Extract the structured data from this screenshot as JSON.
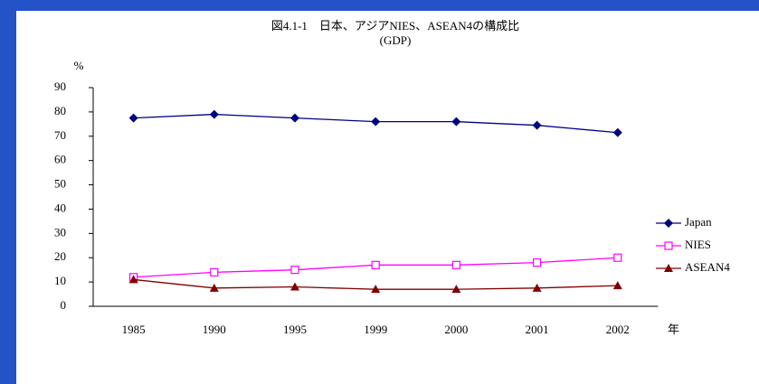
{
  "chart_data": {
    "type": "line",
    "title": "図4.1-1　日本、アジアNIES、ASEAN4の構成比",
    "subtitle": "(GDP)",
    "y_label": "%",
    "x_label": "年",
    "categories": [
      "1985",
      "1990",
      "1995",
      "1999",
      "2000",
      "2001",
      "2002"
    ],
    "series": [
      {
        "name": "Japan",
        "color": "#000080",
        "marker": "diamond",
        "values": [
          77.5,
          79,
          77.5,
          76,
          76,
          74.5,
          71.5
        ]
      },
      {
        "name": "NIES",
        "color": "#ff00ff",
        "marker": "square-open",
        "values": [
          12,
          14,
          15,
          17,
          17,
          18,
          20
        ]
      },
      {
        "name": "ASEAN4",
        "color": "#800000",
        "marker": "triangle",
        "values": [
          11,
          7.5,
          8,
          7,
          7,
          7.5,
          8.5
        ]
      }
    ],
    "ylim": [
      0,
      90
    ],
    "yticks": [
      0,
      10,
      20,
      30,
      40,
      50,
      60,
      70,
      80,
      90
    ],
    "grid": false,
    "legend": "right"
  }
}
